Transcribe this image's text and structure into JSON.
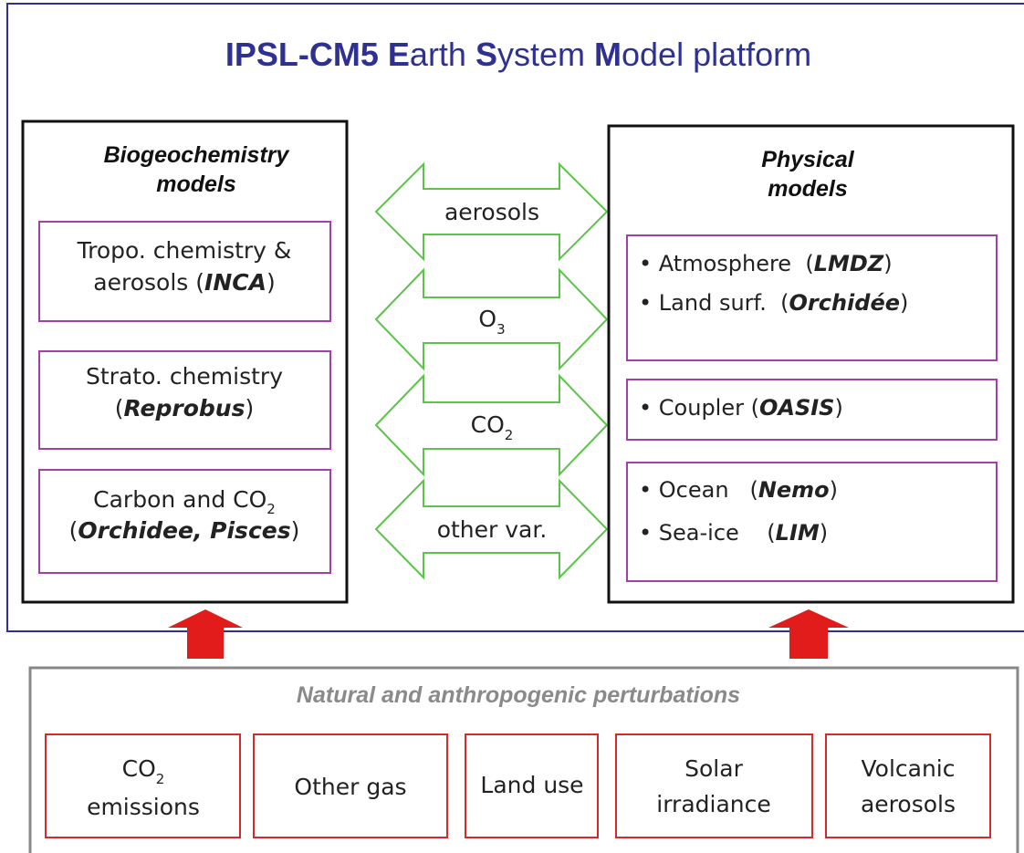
{
  "title": [
    "IPSL-CM5 ",
    "E",
    "arth ",
    "S",
    "ystem ",
    "M",
    "odel platform"
  ],
  "biogeochemistry": {
    "heading": [
      "Biogeochemistry",
      "models"
    ],
    "boxes": [
      [
        [
          "Tropo. chemistry &"
        ],
        [
          "aerosols (",
          "INCA",
          ")"
        ]
      ],
      [
        [
          "Strato. chemistry"
        ],
        [
          "(",
          "Reprobus",
          ")"
        ]
      ],
      [
        [
          "Carbon and CO",
          "2"
        ],
        [
          "(",
          "Orchidee, Pisces",
          ")"
        ]
      ]
    ]
  },
  "exchanges": [
    [
      "aerosols"
    ],
    [
      "O",
      "3"
    ],
    [
      "CO",
      "2"
    ],
    [
      "other var."
    ]
  ],
  "physical": {
    "heading": [
      "Physical",
      "models"
    ],
    "boxes": [
      [
        [
          "• Atmosphere  (",
          "LMDZ",
          ")"
        ],
        [
          "• Land surf.  (",
          "Orchidée",
          ")"
        ]
      ],
      [
        [
          "• Coupler (",
          "OASIS",
          ")"
        ]
      ],
      [
        [
          "• Ocean   (",
          "Nemo",
          ")"
        ],
        [
          "• Sea-ice    (",
          "LIM",
          ")"
        ]
      ]
    ]
  },
  "perturbations": {
    "heading": "Natural and anthropogenic perturbations",
    "boxes": [
      [
        [
          "CO",
          "2"
        ],
        [
          "emissions"
        ]
      ],
      [
        [
          "Other gas"
        ]
      ],
      [
        [
          "Land use"
        ]
      ],
      [
        [
          "Solar"
        ],
        [
          "irradiance"
        ]
      ],
      [
        [
          "Volcanic"
        ],
        [
          "aerosols"
        ]
      ]
    ]
  }
}
